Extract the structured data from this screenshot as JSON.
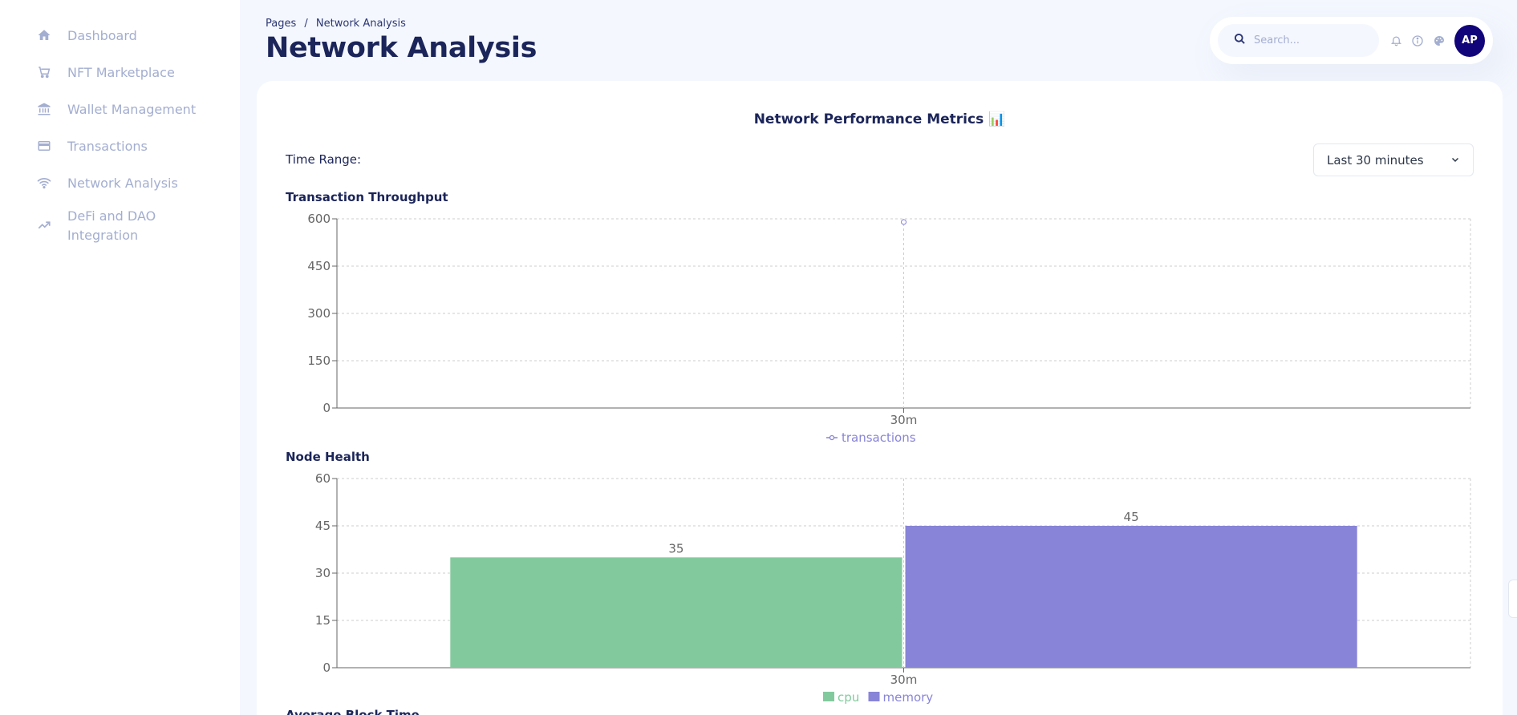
{
  "sidebar": {
    "items": [
      {
        "label": "Dashboard",
        "icon": "home-icon"
      },
      {
        "label": "NFT Marketplace",
        "icon": "cart-icon"
      },
      {
        "label": "Wallet Management",
        "icon": "bank-icon"
      },
      {
        "label": "Transactions",
        "icon": "credit-card-icon"
      },
      {
        "label": "Network Analysis",
        "icon": "wifi-icon"
      },
      {
        "label": "DeFi and DAO Integration",
        "icon": "trending-up-icon"
      }
    ]
  },
  "header": {
    "breadcrumb_root": "Pages",
    "breadcrumb_sep": "/",
    "breadcrumb_current": "Network Analysis",
    "title": "Network Analysis"
  },
  "topbar": {
    "search_placeholder": "Search...",
    "avatar_initials": "AP"
  },
  "card": {
    "title": "Network Performance Metrics 📊",
    "time_range_label": "Time Range:",
    "time_range_value": "Last 30 minutes",
    "sections": {
      "throughput": "Transaction Throughput",
      "node_health": "Node Health",
      "block_time": "Average Block Time"
    }
  },
  "colors": {
    "transactions": "#8884d8",
    "cpu": "#82ca9d",
    "memory": "#8884d8"
  },
  "chart_data": [
    {
      "type": "line",
      "title": "Transaction Throughput",
      "x": [
        "30m"
      ],
      "series": [
        {
          "name": "transactions",
          "values": [
            600
          ]
        }
      ],
      "yticks": [
        0,
        150,
        300,
        450,
        600
      ],
      "ylim": [
        0,
        600
      ],
      "grid": true,
      "legend": "bottom-center"
    },
    {
      "type": "bar",
      "title": "Node Health",
      "categories": [
        "30m"
      ],
      "series": [
        {
          "name": "cpu",
          "values": [
            35
          ]
        },
        {
          "name": "memory",
          "values": [
            45
          ]
        }
      ],
      "yticks": [
        0,
        15,
        30,
        45,
        60
      ],
      "ylim": [
        0,
        60
      ],
      "grid": true,
      "legend": "bottom-center"
    }
  ]
}
